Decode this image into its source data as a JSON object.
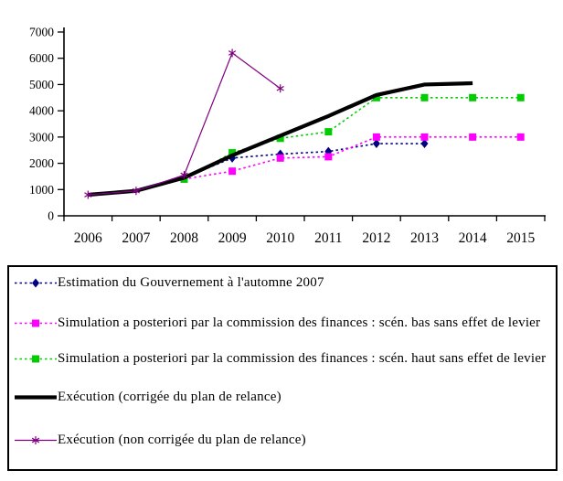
{
  "chart_data": {
    "type": "line",
    "title": "",
    "xlabel": "",
    "ylabel": "",
    "categories": [
      "2006",
      "2007",
      "2008",
      "2009",
      "2010",
      "2011",
      "2012",
      "2013",
      "2014",
      "2015"
    ],
    "ylim": [
      0,
      7000
    ],
    "yticks": [
      0,
      1000,
      2000,
      3000,
      4000,
      5000,
      6000,
      7000
    ],
    "grid": false,
    "legend_position": "bottom-box",
    "series": [
      {
        "name": "Estimation du Gouvernement à l'automne 2007",
        "color": "#000080",
        "line_style": "dotted",
        "line_width": 1.6,
        "marker": "diamond",
        "values": [
          null,
          null,
          1450,
          2200,
          2350,
          2450,
          2750,
          2750,
          null,
          null
        ]
      },
      {
        "name": "Simulation a posteriori par la commission des finances : scén. bas sans effet de levier",
        "color": "#FF00FF",
        "line_style": "dotted",
        "line_width": 1.6,
        "marker": "square",
        "values": [
          null,
          null,
          1400,
          1700,
          2200,
          2250,
          3000,
          3000,
          3000,
          3000
        ]
      },
      {
        "name": "Simulation a posteriori par la commission des finances : scén. haut sans effet de levier",
        "color": "#00CC00",
        "line_style": "dotted",
        "line_width": 1.6,
        "marker": "square",
        "values": [
          null,
          null,
          1400,
          2400,
          2950,
          3200,
          4500,
          4500,
          4500,
          4500
        ]
      },
      {
        "name": "Exécution (corrigée du plan de relance)",
        "color": "#000000",
        "line_style": "solid",
        "line_width": 4.2,
        "marker": "none",
        "values": [
          800,
          950,
          1450,
          2300,
          3050,
          3800,
          4600,
          5000,
          5050,
          null
        ]
      },
      {
        "name": "Exécution (non corrigée du plan de relance)",
        "color": "#800080",
        "line_style": "solid",
        "line_width": 1.2,
        "marker": "star",
        "values": [
          800,
          950,
          1550,
          6200,
          4850,
          null,
          null,
          null,
          null,
          null
        ]
      }
    ]
  }
}
